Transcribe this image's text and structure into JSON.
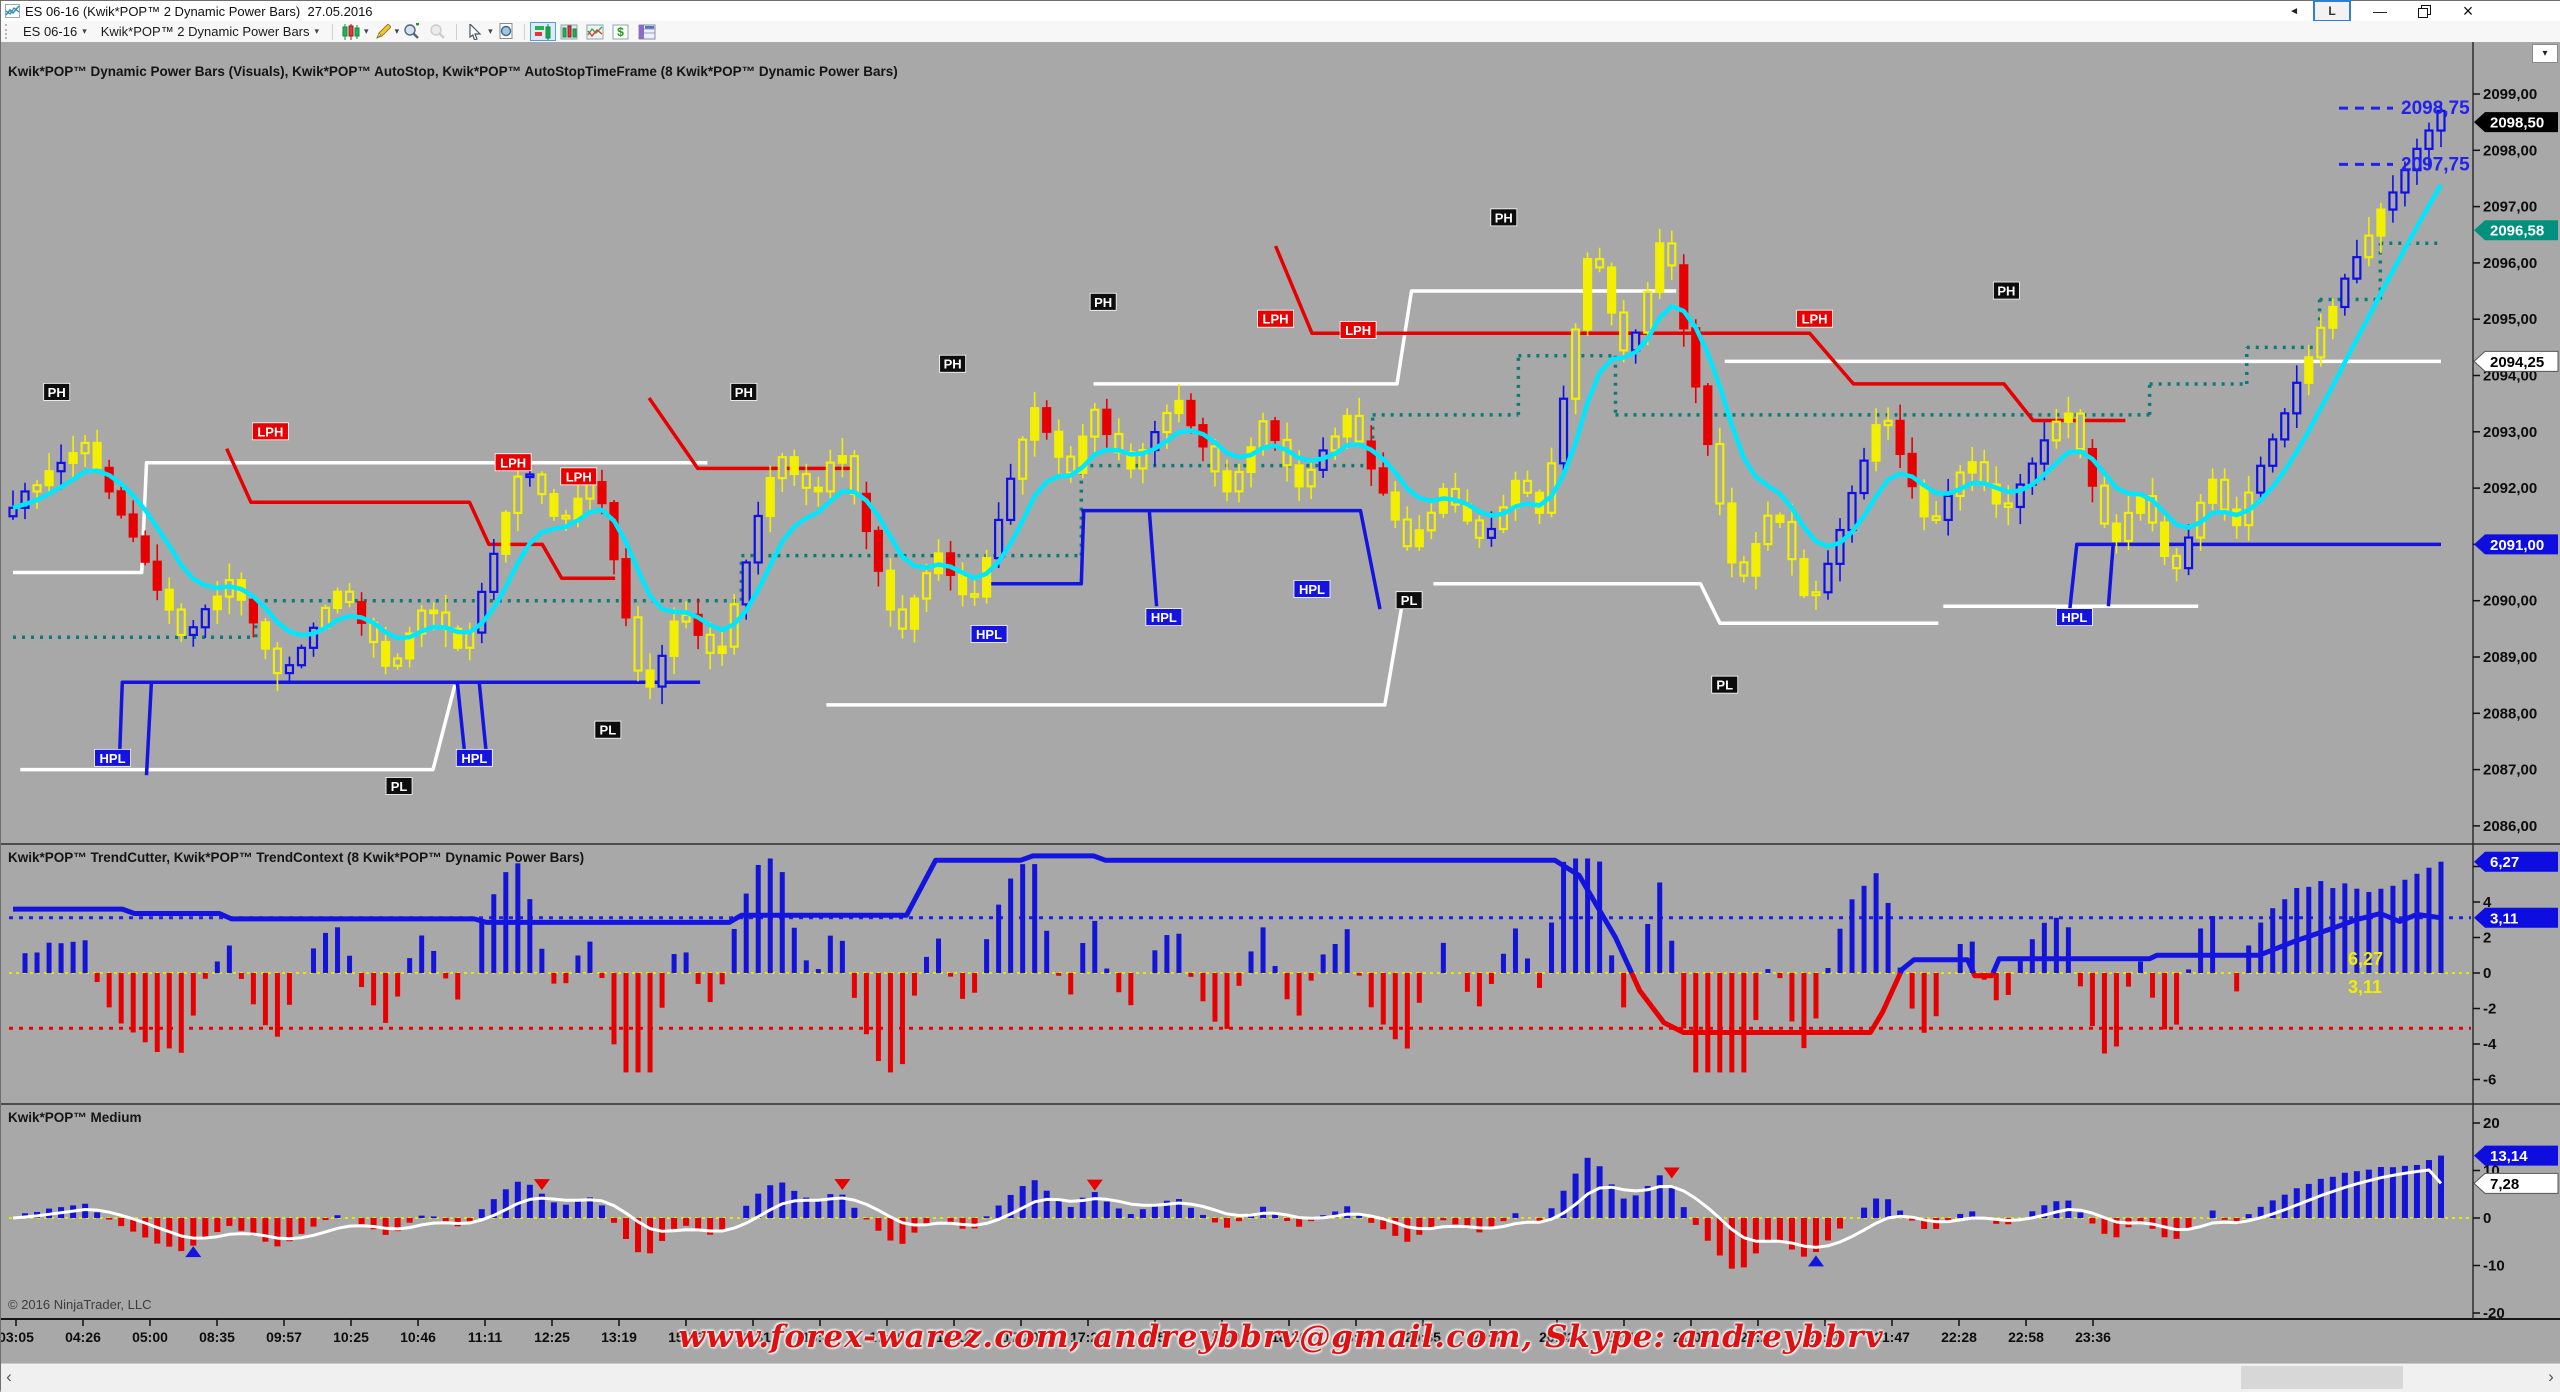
{
  "window": {
    "title": "ES 06-16 (Kwik*POP™ 2 Dynamic Power Bars)  27.05.2016",
    "l_button": "L"
  },
  "toolbar": {
    "instrument": "ES 06-16",
    "indicator": "Kwik*POP™ 2 Dynamic Power Bars"
  },
  "panels": [
    {
      "label": "Kwik*POP™ Dynamic Power Bars (Visuals), Kwik*POP™ AutoStop, Kwik*POP™ AutoStopTimeFrame (8 Kwik*POP™ Dynamic Power Bars)"
    },
    {
      "label": "Kwik*POP™ TrendCutter, Kwik*POP™ TrendContext (8 Kwik*POP™ Dynamic Power Bars)"
    },
    {
      "label": "Kwik*POP™ Medium"
    }
  ],
  "copyright": "© 2016 NinjaTrader, LLC",
  "watermark": "www.forex-warez.com, andreybbrv@gmail.com, Skype: andreybbrv",
  "colors": {
    "chart_bg": "#a8a8a8",
    "bar_up": "#0f0fe8",
    "bar_down": "#e60000",
    "bar_pause": "#f2ef00",
    "ma": "#00e6ff",
    "stop_white": "#ffffff",
    "stop_red": "#e60000",
    "stop_blue": "#1414e0",
    "stop_teal": "#0c7b78",
    "hist_up": "#1414d8",
    "hist_down": "#e60000",
    "context_up": "#1414e0",
    "context_down": "#e60000",
    "zero_line": "#e6e600",
    "dotted_blue": "#1f1fe8",
    "dotted_red": "#e80000",
    "osc_line": "#ffffff",
    "tri_up": "#1414e0",
    "tri_down": "#e60000",
    "annotation": "#2222ee"
  },
  "chart_data": {
    "type": "candlestick+oscillators",
    "instrument": "ES 06-16",
    "price_axis": {
      "min": 2086,
      "max": 2099,
      "ticks": [
        2099,
        2098,
        2097,
        2096,
        2095,
        2094,
        2093,
        2092,
        2091,
        2090,
        2089,
        2088,
        2087,
        2086
      ]
    },
    "price_tags": [
      {
        "t": "2098,50",
        "v": 2098.5,
        "bg": "#000000",
        "fg": "#ffffff"
      },
      {
        "t": "2096,58",
        "v": 2096.58,
        "bg": "#00917e",
        "fg": "#ffffff"
      },
      {
        "t": "2094,25",
        "v": 2094.25,
        "bg": "#ffffff",
        "fg": "#000000"
      },
      {
        "t": "2091,00",
        "v": 2091.0,
        "bg": "#0d0de0",
        "fg": "#ffffff"
      }
    ],
    "annotations": [
      {
        "t": "2098,75",
        "v": 2098.75
      },
      {
        "t": "2097,75",
        "v": 2097.75
      }
    ],
    "swings": [
      [
        0,
        2091.7
      ],
      [
        1.5,
        2092.3
      ],
      [
        3,
        2092.8
      ],
      [
        7,
        2089.3
      ],
      [
        9,
        2090.4
      ],
      [
        11,
        2088.6
      ],
      [
        13.5,
        2090.3
      ],
      [
        15.5,
        2088.7
      ],
      [
        17,
        2090.0
      ],
      [
        18.5,
        2089.0
      ],
      [
        21,
        2092.5
      ],
      [
        22.5,
        2091.3
      ],
      [
        24,
        2092.3
      ],
      [
        26,
        2088.2
      ],
      [
        27.5,
        2089.9
      ],
      [
        29,
        2088.9
      ],
      [
        31.5,
        2092.7
      ],
      [
        33,
        2091.8
      ],
      [
        34,
        2092.8
      ],
      [
        36.5,
        2089.4
      ],
      [
        38,
        2090.9
      ],
      [
        39.5,
        2089.9
      ],
      [
        42,
        2093.5
      ],
      [
        43.5,
        2092.2
      ],
      [
        44.5,
        2093.4
      ],
      [
        46,
        2092.3
      ],
      [
        48,
        2093.6
      ],
      [
        50,
        2091.9
      ],
      [
        51.5,
        2093.2
      ],
      [
        53,
        2092.0
      ],
      [
        55,
        2093.3
      ],
      [
        57.5,
        2090.9
      ],
      [
        59,
        2092.0
      ],
      [
        60.5,
        2091.0
      ],
      [
        62,
        2092.2
      ],
      [
        63,
        2091.5
      ],
      [
        65,
        2096.4
      ],
      [
        66.5,
        2094.2
      ],
      [
        68,
        2096.6
      ],
      [
        71,
        2090.2
      ],
      [
        72.5,
        2091.7
      ],
      [
        74,
        2089.8
      ],
      [
        77,
        2093.4
      ],
      [
        79,
        2091.2
      ],
      [
        80.5,
        2092.6
      ],
      [
        82,
        2091.5
      ],
      [
        84.5,
        2093.5
      ],
      [
        86.5,
        2090.9
      ],
      [
        87.5,
        2092.0
      ],
      [
        89,
        2090.4
      ],
      [
        90.5,
        2092.2
      ],
      [
        91.5,
        2091.3
      ],
      [
        95,
        2094.8
      ],
      [
        97.5,
        2096.9
      ],
      [
        100,
        2098.75
      ]
    ],
    "step_lines": {
      "white": [
        [
          [
            0,
            2090.5
          ],
          [
            5.3,
            2090.5
          ],
          [
            5.5,
            2092.45
          ],
          [
            28.6,
            2092.45
          ]
        ],
        [
          [
            0.3,
            2087.0
          ],
          [
            17.3,
            2087.0
          ],
          [
            18.2,
            2088.5
          ]
        ],
        [
          [
            33.5,
            2088.15
          ],
          [
            56.5,
            2088.15
          ],
          [
            57.2,
            2089.9
          ]
        ],
        [
          [
            44.5,
            2093.85
          ],
          [
            57.0,
            2093.85
          ],
          [
            57.6,
            2095.5
          ],
          [
            68.5,
            2095.5
          ]
        ],
        [
          [
            58.5,
            2090.3
          ],
          [
            69.5,
            2090.3
          ],
          [
            70.3,
            2089.6
          ],
          [
            79.3,
            2089.6
          ]
        ],
        [
          [
            70.5,
            2094.25
          ],
          [
            100,
            2094.25
          ]
        ],
        [
          [
            79.5,
            2089.9
          ],
          [
            90.0,
            2089.9
          ]
        ]
      ],
      "red": [
        [
          [
            8.8,
            2092.7
          ],
          [
            9.8,
            2091.75
          ],
          [
            18.8,
            2091.75
          ],
          [
            19.6,
            2091.0
          ],
          [
            21.8,
            2091.0
          ],
          [
            22.6,
            2090.4
          ],
          [
            24.8,
            2090.4
          ]
        ],
        [
          [
            26.2,
            2093.6
          ],
          [
            28.2,
            2092.35
          ],
          [
            34.5,
            2092.35
          ]
        ],
        [
          [
            52.0,
            2096.3
          ],
          [
            53.5,
            2094.75
          ],
          [
            74.0,
            2094.75
          ],
          [
            75.8,
            2093.85
          ],
          [
            82.0,
            2093.85
          ],
          [
            83.2,
            2093.2
          ],
          [
            87.0,
            2093.2
          ]
        ]
      ],
      "blue": [
        [
          [
            4.4,
            2087.35
          ],
          [
            4.5,
            2088.55
          ],
          [
            28.3,
            2088.55
          ]
        ],
        [
          [
            5.5,
            2086.9
          ],
          [
            5.7,
            2088.55
          ]
        ],
        [
          [
            18.3,
            2088.55
          ],
          [
            18.6,
            2087.3
          ]
        ],
        [
          [
            19.2,
            2088.55
          ],
          [
            19.5,
            2087.25
          ]
        ],
        [
          [
            40.0,
            2090.3
          ],
          [
            44.0,
            2090.3
          ],
          [
            44.1,
            2091.6
          ]
        ],
        [
          [
            44.0,
            2091.6
          ],
          [
            55.5,
            2091.6
          ],
          [
            56.3,
            2089.85
          ]
        ],
        [
          [
            46.8,
            2091.6
          ],
          [
            47.1,
            2089.9
          ]
        ],
        [
          [
            84.7,
            2089.8
          ],
          [
            85.0,
            2091.0
          ],
          [
            100,
            2091.0
          ]
        ],
        [
          [
            86.3,
            2089.9
          ],
          [
            86.5,
            2091.0
          ]
        ]
      ],
      "teal": [
        [
          0,
          10,
          2089.35
        ],
        [
          10,
          30,
          2090.0
        ],
        [
          30,
          44,
          2090.8
        ],
        [
          44,
          56,
          2092.4
        ],
        [
          56,
          62,
          2093.3
        ],
        [
          62,
          66,
          2094.35
        ],
        [
          66,
          88,
          2093.3
        ],
        [
          88,
          92,
          2093.85
        ],
        [
          92,
          95,
          2094.5
        ],
        [
          95,
          97.5,
          2095.35
        ],
        [
          97.5,
          100,
          2096.35
        ]
      ]
    },
    "labels": [
      {
        "t": "PH",
        "x": 1.8,
        "p": 2093.7
      },
      {
        "t": "PH",
        "x": 30.1,
        "p": 2093.7
      },
      {
        "t": "PH",
        "x": 38.7,
        "p": 2094.2
      },
      {
        "t": "PH",
        "x": 44.9,
        "p": 2095.3
      },
      {
        "t": "PH",
        "x": 61.4,
        "p": 2096.8
      },
      {
        "t": "PH",
        "x": 82.1,
        "p": 2095.5
      },
      {
        "t": "PL",
        "x": 15.9,
        "p": 2086.7
      },
      {
        "t": "PL",
        "x": 24.5,
        "p": 2087.7
      },
      {
        "t": "PL",
        "x": 57.5,
        "p": 2090.0
      },
      {
        "t": "PL",
        "x": 70.5,
        "p": 2088.5
      },
      {
        "t": "LPH",
        "x": 10.6,
        "p": 2093.0
      },
      {
        "t": "LPH",
        "x": 20.6,
        "p": 2092.45
      },
      {
        "t": "LPH",
        "x": 23.3,
        "p": 2092.2
      },
      {
        "t": "LPH",
        "x": 52.0,
        "p": 2095.0
      },
      {
        "t": "LPH",
        "x": 55.4,
        "p": 2094.8
      },
      {
        "t": "LPH",
        "x": 74.2,
        "p": 2095.0
      },
      {
        "t": "HPL",
        "x": 4.1,
        "p": 2087.2
      },
      {
        "t": "HPL",
        "x": 19.0,
        "p": 2087.2
      },
      {
        "t": "HPL",
        "x": 40.2,
        "p": 2089.4
      },
      {
        "t": "HPL",
        "x": 47.4,
        "p": 2089.7
      },
      {
        "t": "HPL",
        "x": 53.5,
        "p": 2090.2
      },
      {
        "t": "HPL",
        "x": 84.9,
        "p": 2089.7
      }
    ],
    "panel2": {
      "axis_ticks": [
        6,
        4,
        2,
        0,
        -2,
        -4,
        -6
      ],
      "levels": {
        "blue": 3.11,
        "yellow": 0,
        "red": -3.11
      },
      "tags": [
        {
          "t": "6,27",
          "v": 6.27,
          "bg": "#0d0de0",
          "fg": "#ffffff"
        },
        {
          "t": "3,11",
          "v": 3.11,
          "bg": "#0d0de0",
          "fg": "#ffffff"
        }
      ],
      "yellow_labels": [
        "6,27",
        "3,11"
      ],
      "last_hist": 6.27,
      "line": [
        [
          0,
          3.6
        ],
        [
          4.5,
          3.6
        ],
        [
          5,
          3.35
        ],
        [
          8.5,
          3.35
        ],
        [
          9,
          3.05
        ],
        [
          19,
          3.05
        ],
        [
          19.5,
          2.85
        ],
        [
          29.5,
          2.85
        ],
        [
          30,
          3.25
        ],
        [
          36.8,
          3.25
        ],
        [
          38,
          6.35
        ],
        [
          41.5,
          6.35
        ],
        [
          42,
          6.6
        ],
        [
          44.5,
          6.6
        ],
        [
          45,
          6.35
        ],
        [
          63.5,
          6.35
        ],
        [
          64.5,
          5.5
        ],
        [
          66,
          2.0
        ],
        [
          67,
          -1.0
        ],
        [
          68,
          -2.8
        ],
        [
          68.8,
          -3.35
        ],
        [
          76.5,
          -3.35
        ],
        [
          77,
          -2.2
        ],
        [
          77.8,
          0.2
        ],
        [
          78.3,
          0.75
        ],
        [
          80.5,
          0.75
        ],
        [
          80.8,
          -0.15
        ],
        [
          81.5,
          -0.15
        ],
        [
          81.8,
          0.8
        ],
        [
          88,
          0.8
        ],
        [
          88.3,
          1.0
        ],
        [
          92.5,
          1.0
        ],
        [
          94,
          1.8
        ],
        [
          95.5,
          2.5
        ],
        [
          96.5,
          3.0
        ],
        [
          97.5,
          3.35
        ],
        [
          98.3,
          2.9
        ],
        [
          99,
          3.3
        ],
        [
          100,
          3.11
        ]
      ]
    },
    "panel3": {
      "axis_ticks": [
        20,
        10,
        0,
        -10,
        -20
      ],
      "tags": [
        {
          "t": "13,14",
          "v": 13.14,
          "bg": "#0d0de0",
          "fg": "#ffffff"
        },
        {
          "t": "7,28",
          "v": 7.28,
          "bg": "#ffffff",
          "fg": "#000000"
        }
      ],
      "last_hist": 13.14,
      "last_line": 7.28
    },
    "time_labels": [
      "03:05",
      "04:26",
      "05:00",
      "08:35",
      "09:57",
      "10:25",
      "10:46",
      "11:11",
      "12:25",
      "13:19",
      "15:53",
      "16:31",
      "16:43",
      "17:00",
      "17:12",
      "17:20",
      "17:26",
      "17:57",
      "18:09",
      "18:26",
      "18:42",
      "20:35",
      "20:39",
      "20:42",
      "20:47",
      "21:01",
      "21:25",
      "21:38",
      "21:47",
      "22:28",
      "22:58",
      "23:36"
    ]
  }
}
